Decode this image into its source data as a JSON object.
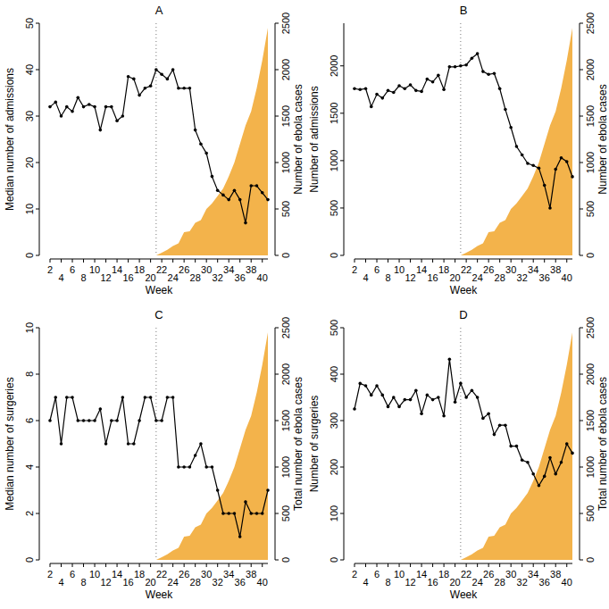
{
  "chart_data": [
    {
      "type": "line",
      "title": "A",
      "x_label": "Week",
      "y_label": "Median number of admissions",
      "y2_label": "Number of ebola cases",
      "x": [
        2,
        3,
        4,
        5,
        6,
        7,
        8,
        9,
        10,
        11,
        12,
        13,
        14,
        15,
        16,
        17,
        18,
        19,
        20,
        21,
        22,
        23,
        24,
        25,
        26,
        27,
        28,
        29,
        30,
        31,
        32,
        33,
        34,
        35,
        36,
        37,
        38,
        39,
        40,
        41
      ],
      "xlim": [
        2,
        41
      ],
      "xticks": [
        2,
        4,
        6,
        8,
        10,
        12,
        14,
        16,
        18,
        20,
        22,
        24,
        26,
        28,
        30,
        32,
        34,
        36,
        38,
        40
      ],
      "ylim": [
        0,
        50
      ],
      "yticks": [
        0,
        10,
        20,
        30,
        40,
        50
      ],
      "y2lim": [
        0,
        2500
      ],
      "y2ticks": [
        0,
        500,
        1000,
        1500,
        2000,
        2500
      ],
      "reference_x": 21,
      "series": [
        {
          "type": "line",
          "color": "#000000",
          "marker": "circle",
          "values": [
            32,
            33,
            30,
            32,
            31,
            34,
            32,
            32.5,
            32,
            27,
            32,
            32,
            29,
            30,
            38.5,
            38,
            34.5,
            36,
            36.5,
            40,
            39,
            38,
            40,
            36,
            36,
            36,
            27,
            24,
            22,
            17,
            14,
            13,
            12,
            14,
            12,
            7,
            15,
            15,
            13.5,
            12
          ]
        },
        {
          "type": "area",
          "axis": "y2",
          "color": "#f3b34b",
          "values": [
            null,
            null,
            null,
            null,
            null,
            null,
            null,
            null,
            null,
            null,
            null,
            null,
            null,
            null,
            null,
            null,
            null,
            null,
            null,
            0,
            30,
            60,
            100,
            130,
            250,
            260,
            350,
            380,
            500,
            560,
            640,
            720,
            850,
            1000,
            1200,
            1400,
            1550,
            1800,
            2100,
            2450
          ]
        }
      ]
    },
    {
      "type": "line",
      "title": "B",
      "x_label": "Week",
      "y_label": "Number of admissions",
      "y2_label": "Number of ebola cases",
      "x": [
        2,
        3,
        4,
        5,
        6,
        7,
        8,
        9,
        10,
        11,
        12,
        13,
        14,
        15,
        16,
        17,
        18,
        19,
        20,
        21,
        22,
        23,
        24,
        25,
        26,
        27,
        28,
        29,
        30,
        31,
        32,
        33,
        34,
        35,
        36,
        37,
        38,
        39,
        40,
        41
      ],
      "xlim": [
        2,
        41
      ],
      "xticks": [
        2,
        4,
        6,
        8,
        10,
        12,
        14,
        16,
        18,
        20,
        22,
        24,
        26,
        28,
        30,
        32,
        34,
        36,
        38,
        40
      ],
      "ylim": [
        0,
        2450
      ],
      "yticks": [
        0,
        500,
        1000,
        1500,
        2000
      ],
      "y2lim": [
        0,
        2500
      ],
      "y2ticks": [
        0,
        500,
        1000,
        1500,
        2000,
        2500
      ],
      "reference_x": 21,
      "series": [
        {
          "type": "line",
          "color": "#000000",
          "marker": "circle",
          "values": [
            1760,
            1750,
            1760,
            1570,
            1700,
            1660,
            1740,
            1720,
            1790,
            1760,
            1800,
            1740,
            1730,
            1860,
            1830,
            1900,
            1750,
            1990,
            1990,
            2000,
            2010,
            2080,
            2130,
            1940,
            1910,
            1920,
            1760,
            1540,
            1350,
            1150,
            1060,
            970,
            950,
            920,
            740,
            500,
            910,
            1030,
            990,
            830
          ]
        },
        {
          "type": "area",
          "axis": "y2",
          "color": "#f3b34b",
          "values": [
            null,
            null,
            null,
            null,
            null,
            null,
            null,
            null,
            null,
            null,
            null,
            null,
            null,
            null,
            null,
            null,
            null,
            null,
            null,
            0,
            30,
            60,
            100,
            130,
            250,
            260,
            350,
            380,
            500,
            560,
            640,
            720,
            850,
            1000,
            1200,
            1400,
            1550,
            1800,
            2100,
            2450
          ]
        }
      ]
    },
    {
      "type": "line",
      "title": "C",
      "x_label": "Week",
      "y_label": "Median number of surgeries",
      "y2_label": "Total number of ebola cases",
      "x": [
        2,
        3,
        4,
        5,
        6,
        7,
        8,
        9,
        10,
        11,
        12,
        13,
        14,
        15,
        16,
        17,
        18,
        19,
        20,
        21,
        22,
        23,
        24,
        25,
        26,
        27,
        28,
        29,
        30,
        31,
        32,
        33,
        34,
        35,
        36,
        37,
        38,
        39,
        40,
        41
      ],
      "xlim": [
        2,
        41
      ],
      "xticks": [
        2,
        4,
        6,
        8,
        10,
        12,
        14,
        16,
        18,
        20,
        22,
        24,
        26,
        28,
        30,
        32,
        34,
        36,
        38,
        40
      ],
      "ylim": [
        0,
        10
      ],
      "yticks": [
        0,
        2,
        4,
        6,
        8,
        10
      ],
      "y2lim": [
        0,
        2500
      ],
      "y2ticks": [
        0,
        500,
        1000,
        1500,
        2000,
        2500
      ],
      "reference_x": 21,
      "series": [
        {
          "type": "line",
          "color": "#000000",
          "marker": "circle",
          "values": [
            6,
            7,
            5,
            7,
            7,
            6,
            6,
            6,
            6,
            6.5,
            5,
            6,
            6,
            7,
            5,
            5,
            6,
            7,
            7,
            6,
            6,
            7,
            7,
            4,
            4,
            4,
            4.5,
            5,
            4,
            4,
            3,
            2,
            2,
            2,
            1,
            2.5,
            2,
            2,
            2,
            3
          ]
        },
        {
          "type": "area",
          "axis": "y2",
          "color": "#f3b34b",
          "values": [
            null,
            null,
            null,
            null,
            null,
            null,
            null,
            null,
            null,
            null,
            null,
            null,
            null,
            null,
            null,
            null,
            null,
            null,
            null,
            0,
            30,
            60,
            100,
            130,
            250,
            260,
            350,
            380,
            500,
            560,
            640,
            720,
            850,
            1000,
            1200,
            1400,
            1550,
            1800,
            2100,
            2450
          ]
        }
      ]
    },
    {
      "type": "line",
      "title": "D",
      "x_label": "Week",
      "y_label": "Number of surgeries",
      "y2_label": "Total number of ebola cases",
      "x": [
        2,
        3,
        4,
        5,
        6,
        7,
        8,
        9,
        10,
        11,
        12,
        13,
        14,
        15,
        16,
        17,
        18,
        19,
        20,
        21,
        22,
        23,
        24,
        25,
        26,
        27,
        28,
        29,
        30,
        31,
        32,
        33,
        34,
        35,
        36,
        37,
        38,
        39,
        40,
        41
      ],
      "xlim": [
        2,
        41
      ],
      "xticks": [
        2,
        4,
        6,
        8,
        10,
        12,
        14,
        16,
        18,
        20,
        22,
        24,
        26,
        28,
        30,
        32,
        34,
        36,
        38,
        40
      ],
      "ylim": [
        0,
        500
      ],
      "yticks": [
        0,
        100,
        200,
        300,
        400,
        500
      ],
      "y2lim": [
        0,
        2500
      ],
      "y2ticks": [
        0,
        500,
        1000,
        1500,
        2000,
        2500
      ],
      "reference_x": 21,
      "series": [
        {
          "type": "line",
          "color": "#000000",
          "marker": "circle",
          "values": [
            325,
            380,
            375,
            355,
            375,
            355,
            330,
            350,
            330,
            345,
            345,
            365,
            315,
            355,
            345,
            350,
            310,
            432,
            340,
            380,
            350,
            365,
            350,
            305,
            315,
            270,
            290,
            290,
            245,
            245,
            215,
            210,
            185,
            160,
            180,
            220,
            185,
            210,
            250,
            230
          ]
        },
        {
          "type": "area",
          "axis": "y2",
          "color": "#f3b34b",
          "values": [
            null,
            null,
            null,
            null,
            null,
            null,
            null,
            null,
            null,
            null,
            null,
            null,
            null,
            null,
            null,
            null,
            null,
            null,
            null,
            0,
            30,
            60,
            100,
            130,
            250,
            260,
            350,
            380,
            500,
            560,
            640,
            720,
            850,
            1000,
            1200,
            1400,
            1550,
            1800,
            2100,
            2450
          ]
        }
      ]
    }
  ]
}
